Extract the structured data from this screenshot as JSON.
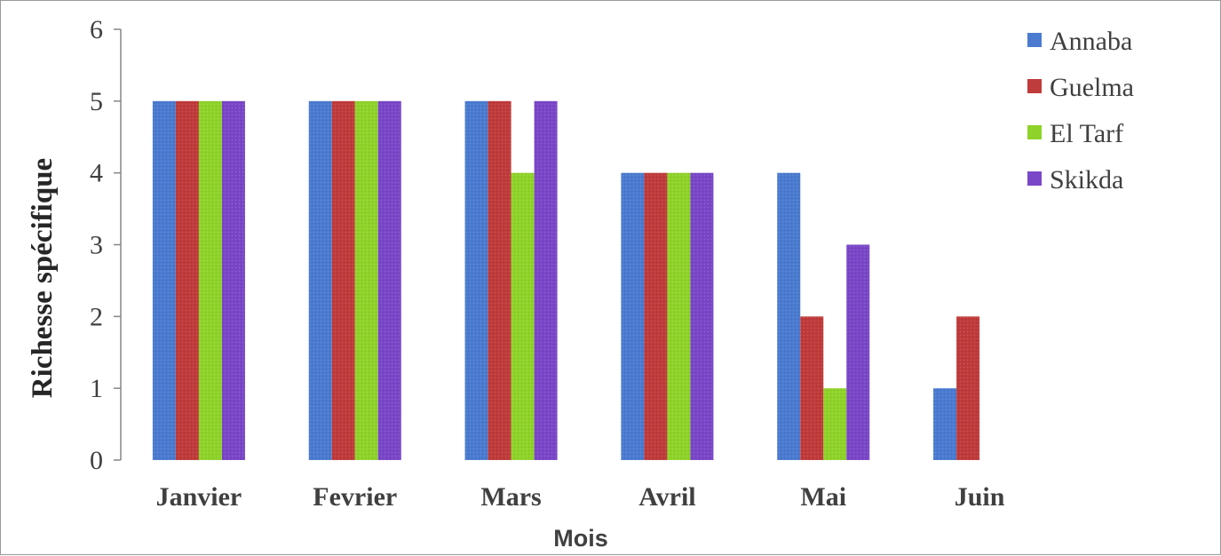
{
  "chart_data": {
    "type": "bar",
    "title": "",
    "xlabel": "Mois",
    "ylabel": "Richesse spécifique",
    "ylim": [
      0,
      6
    ],
    "yticks": [
      0,
      1,
      2,
      3,
      4,
      5,
      6
    ],
    "grid": false,
    "legend_position": "top-right",
    "categories": [
      "Janvier",
      "Fevrier",
      "Mars",
      "Avril",
      "Mai",
      "Juin"
    ],
    "series": [
      {
        "name": "Annaba",
        "color": "#4a7bd0",
        "values": [
          5,
          5,
          5,
          4,
          4,
          1
        ]
      },
      {
        "name": "Guelma",
        "color": "#c03b3b",
        "values": [
          5,
          5,
          5,
          4,
          2,
          2
        ]
      },
      {
        "name": "El Tarf",
        "color": "#8fd32a",
        "values": [
          5,
          5,
          4,
          4,
          1,
          0
        ]
      },
      {
        "name": "Skikda",
        "color": "#7a47c8",
        "values": [
          5,
          5,
          5,
          4,
          3,
          0
        ]
      }
    ]
  }
}
